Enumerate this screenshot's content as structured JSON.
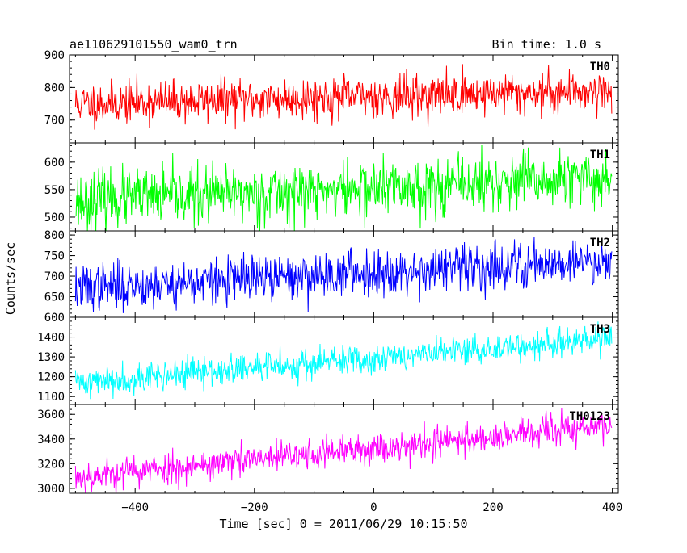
{
  "header": {
    "left": "ae110629101550_wam0_trn",
    "right": "Bin time: 1.0 s"
  },
  "chart_data": {
    "type": "line",
    "title": "ae110629101550_wam0_trn",
    "bin_time": "Bin time: 1.0 s",
    "xlabel": "Time [sec] 0 = 2011/06/29 10:15:50",
    "ylabel": "Counts/sec",
    "xlim": [
      -510,
      410
    ],
    "x_ticks": [
      -400,
      -200,
      0,
      200,
      400
    ],
    "x_tick_labels": [
      "−400",
      "−200",
      "0",
      "200",
      "400"
    ],
    "x_range_data": [
      -500,
      399
    ],
    "bin": 1.0,
    "panels": [
      {
        "name": "TH0",
        "color": "#ff0000",
        "ylim": [
          630,
          900
        ],
        "y_ticks": [
          700,
          800,
          900
        ],
        "y_tick_labels": [
          "700",
          "800",
          "900"
        ],
        "trend_start": 750,
        "trend_end": 790,
        "noise": 32,
        "seed": 11
      },
      {
        "name": "TH1",
        "color": "#00ff00",
        "ylim": [
          475,
          635
        ],
        "y_ticks": [
          500,
          550,
          600
        ],
        "y_tick_labels": [
          "500",
          "550",
          "600"
        ],
        "trend_start": 530,
        "trend_end": 570,
        "noise": 26,
        "seed": 23
      },
      {
        "name": "TH2",
        "color": "#0000ff",
        "ylim": [
          600,
          810
        ],
        "y_ticks": [
          600,
          650,
          700,
          750,
          800
        ],
        "y_tick_labels": [
          "600",
          "650",
          "700",
          "750",
          "800"
        ],
        "trend_start": 670,
        "trend_end": 740,
        "noise": 28,
        "seed": 37
      },
      {
        "name": "TH3",
        "color": "#00ffff",
        "ylim": [
          1060,
          1500
        ],
        "y_ticks": [
          1100,
          1200,
          1300,
          1400
        ],
        "y_tick_labels": [
          "1100",
          "1200",
          "1300",
          "1400"
        ],
        "trend_start": 1170,
        "trend_end": 1390,
        "noise": 38,
        "seed": 41
      },
      {
        "name": "TH0123",
        "color": "#ff00ff",
        "ylim": [
          2960,
          3680
        ],
        "y_ticks": [
          3000,
          3200,
          3400,
          3600
        ],
        "y_tick_labels": [
          "3000",
          "3200",
          "3400",
          "3600"
        ],
        "trend_start": 3090,
        "trend_end": 3510,
        "noise": 65,
        "seed": 53
      }
    ]
  }
}
